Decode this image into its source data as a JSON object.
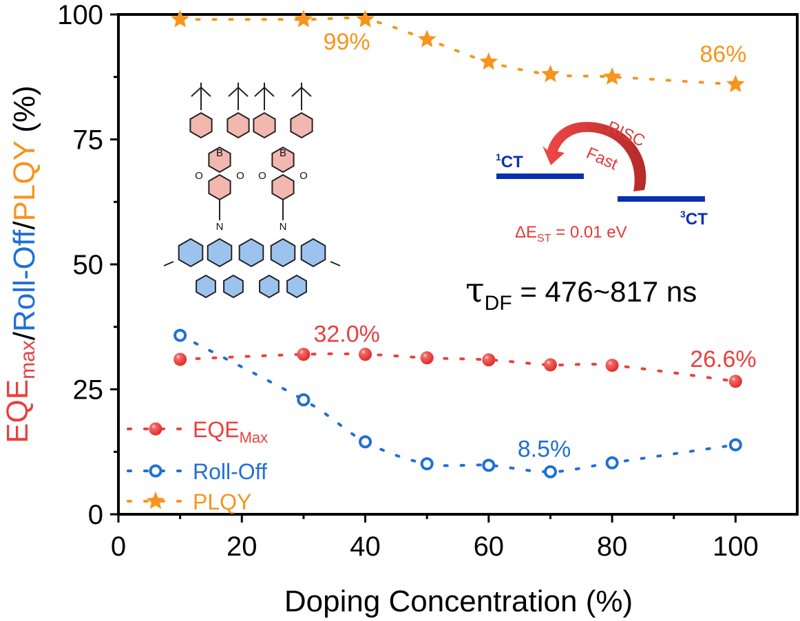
{
  "chart_data": {
    "type": "line",
    "title": "",
    "xlabel": "Doping Concentration (%)",
    "ylabel_parts": [
      {
        "text": "EQE",
        "sub": "max",
        "color": "#e8413e"
      },
      {
        "text": "/",
        "color": "#000000"
      },
      {
        "text": "Roll-Off",
        "color": "#1f6fd6"
      },
      {
        "text": "/",
        "color": "#000000"
      },
      {
        "text": "PLQY",
        "color": "#f7941d"
      },
      {
        "text": " (%)",
        "color": "#000000"
      }
    ],
    "xlim": [
      0,
      110
    ],
    "ylim": [
      0,
      100
    ],
    "xticks": [
      0,
      20,
      40,
      60,
      80,
      100
    ],
    "xtick_labels": [
      "0",
      "20",
      "40",
      "60",
      "80",
      "100"
    ],
    "yticks": [
      0,
      25,
      50,
      75,
      100
    ],
    "ytick_labels": [
      "0",
      "25",
      "50",
      "75",
      "100"
    ],
    "grid": false,
    "x": [
      10,
      30,
      40,
      50,
      60,
      70,
      80,
      100
    ],
    "series": [
      {
        "name": "EQE_Max",
        "legend_label": "EQE",
        "legend_sub": "Max",
        "color": "#e8413e",
        "marker": "sphere",
        "line": "dotted",
        "values": [
          31.0,
          32.0,
          32.0,
          31.3,
          30.9,
          29.9,
          29.8,
          26.6
        ]
      },
      {
        "name": "Roll-Off",
        "legend_label": "Roll-Off",
        "color": "#1f6fd6",
        "marker": "open-circle",
        "line": "dotted",
        "values": [
          35.8,
          22.9,
          14.5,
          10.1,
          9.8,
          8.5,
          10.3,
          13.9
        ]
      },
      {
        "name": "PLQY",
        "legend_label": "PLQY",
        "color": "#f7941d",
        "marker": "star",
        "line": "dotted",
        "values": [
          99.0,
          99.0,
          99.0,
          95.0,
          90.5,
          88.0,
          87.5,
          86.0
        ]
      }
    ],
    "legend_position": "bottom-left",
    "annotations": [
      {
        "text": "99%",
        "color": "#f7941d",
        "x": 37,
        "y": 93
      },
      {
        "text": "86%",
        "color": "#f7941d",
        "x": 98,
        "y": 90.5
      },
      {
        "text": "32.0%",
        "color": "#e8413e",
        "x": 37,
        "y": 34.5
      },
      {
        "text": "26.6%",
        "color": "#e8413e",
        "x": 98,
        "y": 29.5
      },
      {
        "text": "8.5%",
        "color": "#1f6fd6",
        "x": 69,
        "y": 11.5
      }
    ],
    "inset": {
      "lifetime": {
        "symbol": "τ",
        "sub": "DF",
        "value": " = 476~817 ns"
      },
      "energy_diagram": {
        "singlet_label": "1CT",
        "singlet_sup": "1",
        "singlet_text": "CT",
        "triplet_label": "3CT",
        "triplet_sup": "3",
        "triplet_text": "CT",
        "arrow_label_1": "RISC",
        "arrow_label_2": "Fast",
        "gap_prefix": "ΔE",
        "gap_sub": "ST",
        "gap_value": " = 0.01 eV",
        "level_color": "#0a2fb0",
        "arrow_color": "#e03a3a"
      },
      "molecule": {
        "atoms": [
          "B",
          "B",
          "O",
          "O",
          "O",
          "O",
          "N",
          "N"
        ],
        "acceptor_color": "#f2b8b0",
        "donor_color": "#9cc3ee"
      }
    }
  }
}
